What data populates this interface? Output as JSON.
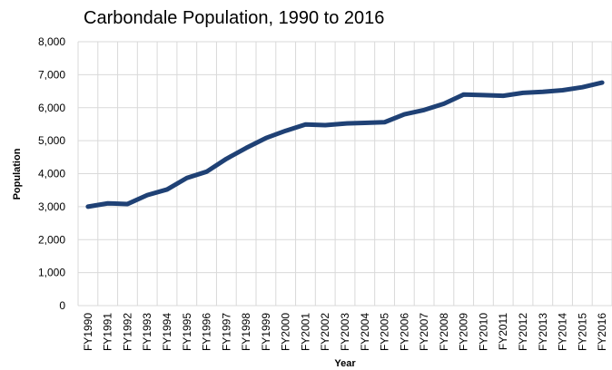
{
  "chart_data": {
    "type": "line",
    "title": "Carbondale Population, 1990 to 2016",
    "x_label": "Year",
    "y_label": "Population",
    "categories": [
      "FY1990",
      "FY1991",
      "FY1992",
      "FY1993",
      "FY1994",
      "FY1995",
      "FY1996",
      "FY1997",
      "FY1998",
      "FY1999",
      "FY2000",
      "FY2001",
      "FY2002",
      "FY2003",
      "FY2004",
      "FY2005",
      "FY2006",
      "FY2007",
      "FY2008",
      "FY2009",
      "FY2010",
      "FY2011",
      "FY2012",
      "FY2013",
      "FY2014",
      "FY2015",
      "FY2016"
    ],
    "series": [
      {
        "name": "Population",
        "color": "#1f4175",
        "values": [
          3000,
          3100,
          3080,
          3350,
          3520,
          3870,
          4060,
          4450,
          4780,
          5080,
          5300,
          5490,
          5470,
          5520,
          5540,
          5560,
          5800,
          5930,
          6120,
          6400,
          6380,
          6360,
          6450,
          6480,
          6530,
          6620,
          6760
        ]
      }
    ],
    "ylim": [
      0,
      8000
    ],
    "yticks": [
      0,
      {
        "value": 1000,
        "label": "1,000"
      },
      {
        "value": 2000,
        "label": "2,000"
      },
      {
        "value": 3000,
        "label": "3,000"
      },
      {
        "value": 4000,
        "label": "4,000"
      },
      {
        "value": 5000,
        "label": "5,000"
      },
      {
        "value": 6000,
        "label": "6,000"
      },
      {
        "value": 7000,
        "label": "7,000"
      },
      {
        "value": 8000,
        "label": "8,000"
      }
    ],
    "grid": true
  }
}
